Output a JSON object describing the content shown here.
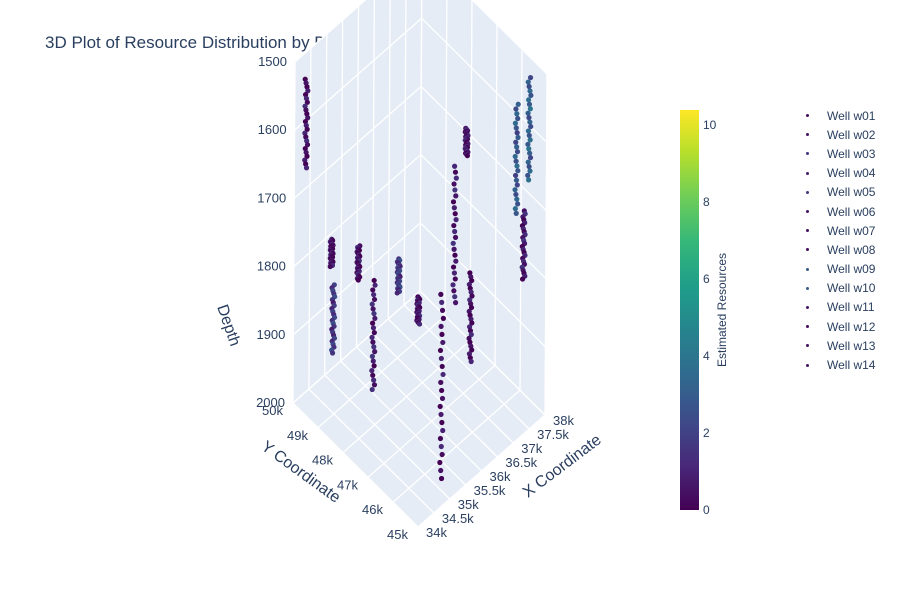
{
  "chart_data": {
    "type": "scatter3d",
    "title": "3D Plot of Resource Distribution by Depth",
    "axes": {
      "x": {
        "label": "X Coordinate",
        "range": [
          34000,
          38000
        ],
        "ticks": [
          "34k",
          "34.5k",
          "35k",
          "35.5k",
          "36k",
          "36.5k",
          "37k",
          "37.5k",
          "38k"
        ]
      },
      "y": {
        "label": "Y Coordinate",
        "range": [
          45000,
          50000
        ],
        "ticks": [
          "45k",
          "46k",
          "47k",
          "48k",
          "49k",
          "50k"
        ]
      },
      "z": {
        "label": "Depth",
        "range": [
          1500,
          2000
        ],
        "reversed": true,
        "ticks": [
          "1500",
          "1600",
          "1700",
          "1800",
          "1900",
          "2000"
        ]
      }
    },
    "colorbar": {
      "title": "Estimated Resources",
      "range": [
        0,
        10.4
      ],
      "ticks": [
        "0",
        "2",
        "4",
        "6",
        "8",
        "10"
      ],
      "colorscale": "Viridis"
    },
    "series": [
      {
        "name": "Well w01",
        "x": 34250,
        "y": 49850,
        "depth": [
          1530,
          1660
        ],
        "resource": 0.4
      },
      {
        "name": "Well w02",
        "x": 34850,
        "y": 48500,
        "depth": [
          1750,
          1800
        ],
        "resource": 0.5
      },
      {
        "name": "Well w03",
        "x": 34700,
        "y": 49300,
        "depth": [
          1830,
          1930
        ],
        "resource": 1.6
      },
      {
        "name": "Well w04",
        "x": 35100,
        "y": 48200,
        "depth": [
          1800,
          1960
        ],
        "resource": 0.8
      },
      {
        "name": "Well w05",
        "x": 35650,
        "y": 47900,
        "depth": [
          1780,
          1830
        ],
        "resource": 1.7
      },
      {
        "name": "Well w06",
        "x": 36300,
        "y": 46500,
        "depth": [
          1620,
          1820
        ],
        "resource": 0.6
      },
      {
        "name": "Well w07",
        "x": 36500,
        "y": 46100,
        "depth": [
          1770,
          1900
        ],
        "resource": 0.4
      },
      {
        "name": "Well w08",
        "x": 35200,
        "y": 45600,
        "depth": [
          1730,
          2000
        ],
        "resource": 0.3
      },
      {
        "name": "Well w09",
        "x": 37450,
        "y": 45500,
        "depth": [
          1540,
          1700
        ],
        "resource": 2.8
      },
      {
        "name": "Well w10",
        "x": 37650,
        "y": 45250,
        "depth": [
          1500,
          1650
        ],
        "resource": 3.1
      },
      {
        "name": "Well w11",
        "x": 37850,
        "y": 45700,
        "depth": [
          1720,
          1820
        ],
        "resource": 0.7
      },
      {
        "name": "Well w12",
        "x": 34400,
        "y": 49000,
        "depth": [
          1740,
          1780
        ],
        "resource": 0.3
      },
      {
        "name": "Well w13",
        "x": 35800,
        "y": 47300,
        "depth": [
          1820,
          1860
        ],
        "resource": 0.5
      },
      {
        "name": "Well w14",
        "x": 36900,
        "y": 46800,
        "depth": [
          1600,
          1640
        ],
        "resource": 0.6
      }
    ]
  }
}
